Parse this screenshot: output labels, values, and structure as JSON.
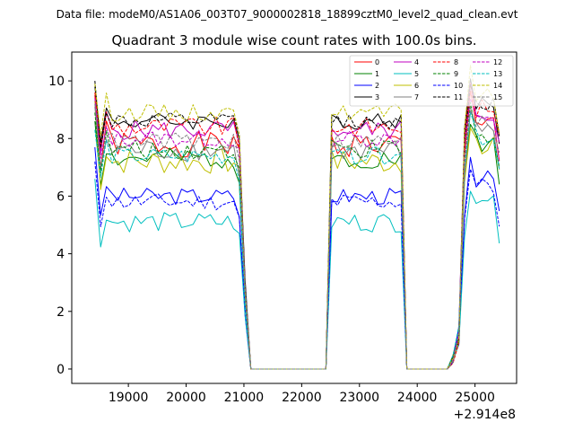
{
  "suptitle": "Data file: modeM0/AS1A06_003T07_9000002818_18899cztM0_level2_quad_clean.evt",
  "chart_data": {
    "type": "line",
    "title": "Quadrant 3 module wise count rates with 100.0s bins.",
    "xlabel": "",
    "ylabel": "",
    "x_offset_label": "+2.914e8",
    "xlim": [
      18020,
      25720
    ],
    "ylim": [
      -0.5,
      11.0
    ],
    "xticks": [
      19000,
      20000,
      21000,
      22000,
      23000,
      24000,
      25000
    ],
    "yticks": [
      0,
      2,
      4,
      6,
      8,
      10
    ],
    "grid": false,
    "legend_position": "top-right",
    "legend_columns": 4,
    "segments": [
      {
        "start": 18420,
        "end": 20920
      },
      {
        "start": 22470,
        "end": 23770
      },
      {
        "start": 24720,
        "end": 25420
      }
    ],
    "series": [
      {
        "name": "0",
        "color": "#ff0000",
        "dash": "solid",
        "level": 7.8,
        "wiggle": 0.45,
        "first": 9.5,
        "seed": 1
      },
      {
        "name": "1",
        "color": "#008000",
        "dash": "solid",
        "level": 7.3,
        "wiggle": 0.35,
        "first": 8.6,
        "seed": 2
      },
      {
        "name": "2",
        "color": "#0000ff",
        "dash": "solid",
        "level": 6.0,
        "wiggle": 0.3,
        "first": 7.7,
        "seed": 3
      },
      {
        "name": "3",
        "color": "#000000",
        "dash": "solid",
        "level": 8.6,
        "wiggle": 0.3,
        "first": 9.8,
        "seed": 4
      },
      {
        "name": "4",
        "color": "#c000c0",
        "dash": "solid",
        "level": 8.3,
        "wiggle": 0.35,
        "first": 9.3,
        "seed": 5
      },
      {
        "name": "5",
        "color": "#00bfbf",
        "dash": "solid",
        "level": 5.1,
        "wiggle": 0.35,
        "first": 6.6,
        "seed": 6
      },
      {
        "name": "6",
        "color": "#bfbf00",
        "dash": "solid",
        "level": 7.2,
        "wiggle": 0.45,
        "first": 9.3,
        "seed": 7
      },
      {
        "name": "7",
        "color": "#808080",
        "dash": "solid",
        "level": 7.6,
        "wiggle": 0.4,
        "first": 9.1,
        "seed": 8
      },
      {
        "name": "8",
        "color": "#ff0000",
        "dash": "dashed",
        "level": 8.4,
        "wiggle": 0.35,
        "first": 9.6,
        "seed": 9
      },
      {
        "name": "9",
        "color": "#008000",
        "dash": "dashed",
        "level": 7.6,
        "wiggle": 0.35,
        "first": 8.9,
        "seed": 10
      },
      {
        "name": "10",
        "color": "#0000ff",
        "dash": "dashed",
        "level": 5.8,
        "wiggle": 0.3,
        "first": 7.2,
        "seed": 11
      },
      {
        "name": "11",
        "color": "#000000",
        "dash": "dashed",
        "level": 8.6,
        "wiggle": 0.3,
        "first": 10.0,
        "seed": 12
      },
      {
        "name": "12",
        "color": "#c000c0",
        "dash": "dashed",
        "level": 8.0,
        "wiggle": 0.3,
        "first": 9.4,
        "seed": 13
      },
      {
        "name": "13",
        "color": "#00bfbf",
        "dash": "dashed",
        "level": 7.4,
        "wiggle": 0.3,
        "first": 8.3,
        "seed": 14
      },
      {
        "name": "14",
        "color": "#bfbf00",
        "dash": "dashed",
        "level": 8.9,
        "wiggle": 0.3,
        "first": 9.9,
        "seed": 15
      },
      {
        "name": "15",
        "color": "#808080",
        "dash": "dashed",
        "level": 7.9,
        "wiggle": 0.3,
        "first": 9.2,
        "seed": 16
      }
    ],
    "x_start": 18420,
    "x_end": 25420,
    "bin_size": 100.0
  }
}
